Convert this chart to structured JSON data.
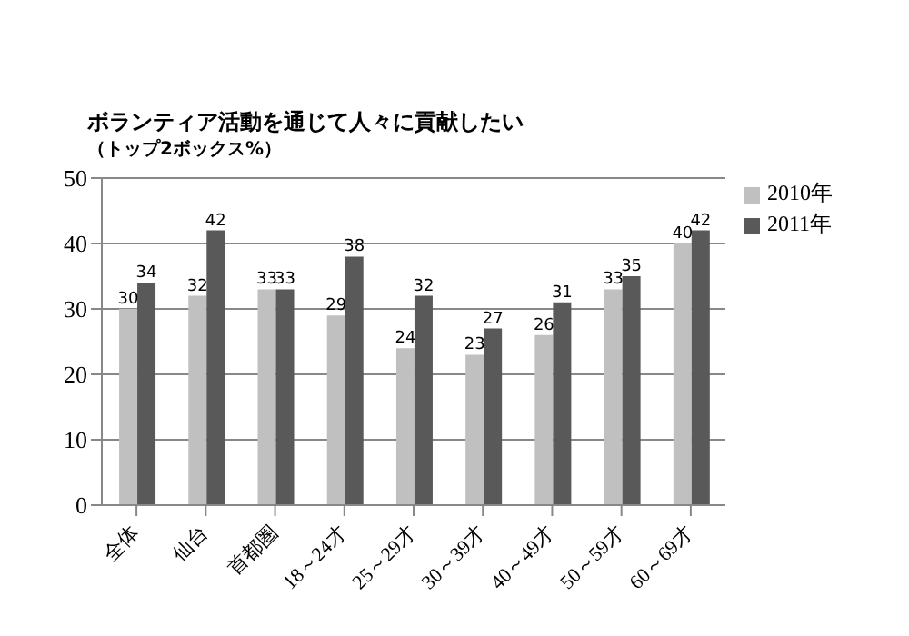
{
  "chart_data": {
    "type": "bar",
    "title": "ボランティア活動を通じて人々に貢献したい",
    "subtitle": "（トップ2ボックス%）",
    "categories": [
      "全体",
      "仙台",
      "首都圏",
      "18～24才",
      "25～29才",
      "30～39才",
      "40～49才",
      "50～59才",
      "60～69才"
    ],
    "series": [
      {
        "name": "2010年",
        "color": "#c0c0c0",
        "values": [
          30,
          32,
          33,
          29,
          24,
          23,
          26,
          33,
          40
        ]
      },
      {
        "name": "2011年",
        "color": "#595959",
        "values": [
          34,
          42,
          33,
          38,
          32,
          27,
          31,
          35,
          42
        ]
      }
    ],
    "ylim": [
      0,
      50
    ],
    "yticks": [
      0,
      10,
      20,
      30,
      40,
      50
    ],
    "grid": "y",
    "legend": "top right",
    "data_labels": true
  }
}
